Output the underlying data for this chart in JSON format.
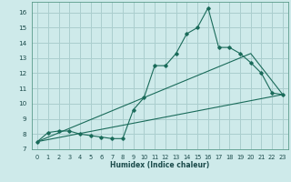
{
  "xlabel": "Humidex (Indice chaleur)",
  "bg_color": "#ceeaea",
  "grid_color": "#aacece",
  "line_color": "#1a6b5a",
  "xlim": [
    -0.5,
    23.5
  ],
  "ylim": [
    7,
    16.7
  ],
  "xticks": [
    0,
    1,
    2,
    3,
    4,
    5,
    6,
    7,
    8,
    9,
    10,
    11,
    12,
    13,
    14,
    15,
    16,
    17,
    18,
    19,
    20,
    21,
    22,
    23
  ],
  "yticks": [
    7,
    8,
    9,
    10,
    11,
    12,
    13,
    14,
    15,
    16
  ],
  "series1_x": [
    0,
    1,
    2,
    3,
    4,
    5,
    6,
    7,
    8,
    9,
    10,
    11,
    12,
    13,
    14,
    15,
    16,
    17,
    18,
    19,
    20,
    21,
    22,
    23
  ],
  "series1_y": [
    7.5,
    8.1,
    8.2,
    8.2,
    8.0,
    7.9,
    7.8,
    7.7,
    7.7,
    9.6,
    10.4,
    12.5,
    12.5,
    13.3,
    14.6,
    15.0,
    16.3,
    13.7,
    13.7,
    13.3,
    12.7,
    12.0,
    10.7,
    10.6
  ],
  "series2_x": [
    0,
    23
  ],
  "series2_y": [
    7.5,
    10.6
  ],
  "series3_x": [
    0,
    20,
    23
  ],
  "series3_y": [
    7.5,
    13.3,
    10.6
  ]
}
